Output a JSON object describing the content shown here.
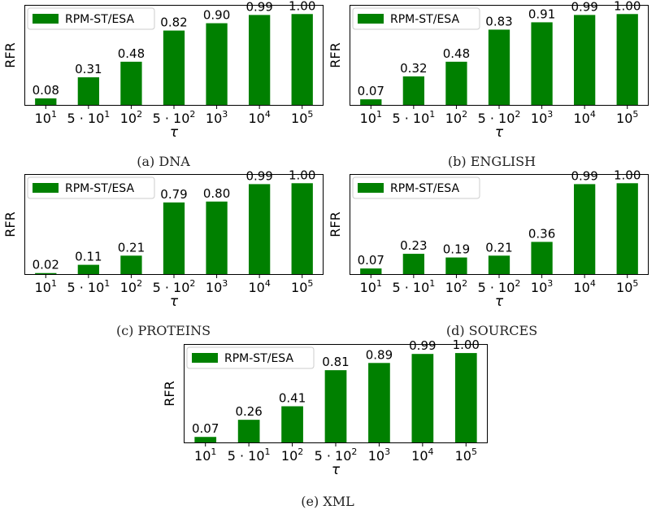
{
  "chart_data": [
    {
      "type": "bar",
      "caption": "(a) DNA",
      "legend": "RPM-ST/ESA",
      "ylabel": "RFR",
      "xlabel": "τ",
      "categories": [
        {
          "base": "10",
          "sup": "1"
        },
        {
          "base": "5 · 10",
          "sup": "1"
        },
        {
          "base": "10",
          "sup": "2"
        },
        {
          "base": "5 · 10",
          "sup": "2"
        },
        {
          "base": "10",
          "sup": "3"
        },
        {
          "base": "10",
          "sup": "4"
        },
        {
          "base": "10",
          "sup": "5"
        }
      ],
      "values": [
        0.08,
        0.31,
        0.48,
        0.82,
        0.9,
        0.99,
        1.0
      ],
      "labels": [
        "0.08",
        "0.31",
        "0.48",
        "0.82",
        "0.90",
        "0.99",
        "1.00"
      ],
      "ylim": [
        0,
        1.1
      ],
      "color": "#008000",
      "legend_position": "top-left"
    },
    {
      "type": "bar",
      "caption": "(b) ENGLISH",
      "legend": "RPM-ST/ESA",
      "ylabel": "RFR",
      "xlabel": "τ",
      "categories": [
        {
          "base": "10",
          "sup": "1"
        },
        {
          "base": "5 · 10",
          "sup": "1"
        },
        {
          "base": "10",
          "sup": "2"
        },
        {
          "base": "5 · 10",
          "sup": "2"
        },
        {
          "base": "10",
          "sup": "3"
        },
        {
          "base": "10",
          "sup": "4"
        },
        {
          "base": "10",
          "sup": "5"
        }
      ],
      "values": [
        0.07,
        0.32,
        0.48,
        0.83,
        0.91,
        0.99,
        1.0
      ],
      "labels": [
        "0.07",
        "0.32",
        "0.48",
        "0.83",
        "0.91",
        "0.99",
        "1.00"
      ],
      "ylim": [
        0,
        1.1
      ],
      "color": "#008000",
      "legend_position": "top-left"
    },
    {
      "type": "bar",
      "caption": "(c) PROTEINS",
      "legend": "RPM-ST/ESA",
      "ylabel": "RFR",
      "xlabel": "τ",
      "categories": [
        {
          "base": "10",
          "sup": "1"
        },
        {
          "base": "5 · 10",
          "sup": "1"
        },
        {
          "base": "10",
          "sup": "2"
        },
        {
          "base": "5 · 10",
          "sup": "2"
        },
        {
          "base": "10",
          "sup": "3"
        },
        {
          "base": "10",
          "sup": "4"
        },
        {
          "base": "10",
          "sup": "5"
        }
      ],
      "values": [
        0.02,
        0.11,
        0.21,
        0.79,
        0.8,
        0.99,
        1.0
      ],
      "labels": [
        "0.02",
        "0.11",
        "0.21",
        "0.79",
        "0.80",
        "0.99",
        "1.00"
      ],
      "ylim": [
        0,
        1.1
      ],
      "color": "#008000",
      "legend_position": "top-left"
    },
    {
      "type": "bar",
      "caption": "(d) SOURCES",
      "legend": "RPM-ST/ESA",
      "ylabel": "RFR",
      "xlabel": "τ",
      "categories": [
        {
          "base": "10",
          "sup": "1"
        },
        {
          "base": "5 · 10",
          "sup": "1"
        },
        {
          "base": "10",
          "sup": "2"
        },
        {
          "base": "5 · 10",
          "sup": "2"
        },
        {
          "base": "10",
          "sup": "3"
        },
        {
          "base": "10",
          "sup": "4"
        },
        {
          "base": "10",
          "sup": "5"
        }
      ],
      "values": [
        0.07,
        0.23,
        0.19,
        0.21,
        0.36,
        0.99,
        1.0
      ],
      "labels": [
        "0.07",
        "0.23",
        "0.19",
        "0.21",
        "0.36",
        "0.99",
        "1.00"
      ],
      "ylim": [
        0,
        1.1
      ],
      "color": "#008000",
      "legend_position": "top-left"
    },
    {
      "type": "bar",
      "caption": "(e) XML",
      "legend": "RPM-ST/ESA",
      "ylabel": "RFR",
      "xlabel": "τ",
      "categories": [
        {
          "base": "10",
          "sup": "1"
        },
        {
          "base": "5 · 10",
          "sup": "1"
        },
        {
          "base": "10",
          "sup": "2"
        },
        {
          "base": "5 · 10",
          "sup": "2"
        },
        {
          "base": "10",
          "sup": "3"
        },
        {
          "base": "10",
          "sup": "4"
        },
        {
          "base": "10",
          "sup": "5"
        }
      ],
      "values": [
        0.07,
        0.26,
        0.41,
        0.81,
        0.89,
        0.99,
        1.0
      ],
      "labels": [
        "0.07",
        "0.26",
        "0.41",
        "0.81",
        "0.89",
        "0.99",
        "1.00"
      ],
      "ylim": [
        0,
        1.1
      ],
      "color": "#008000",
      "legend_position": "top-left"
    }
  ]
}
